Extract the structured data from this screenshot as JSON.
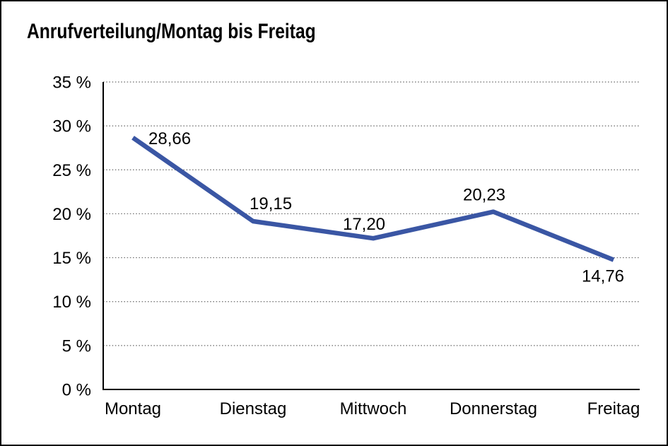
{
  "title": "Anrufverteilung/Montag bis Freitag",
  "chart_data": {
    "type": "line",
    "title": "Anrufverteilung/Montag bis Freitag",
    "categories": [
      "Montag",
      "Dienstag",
      "Mittwoch",
      "Donnerstag",
      "Freitag"
    ],
    "values": [
      28.66,
      19.15,
      17.2,
      20.23,
      14.76
    ],
    "value_labels": [
      "28,66",
      "19,15",
      "17,20",
      "20,23",
      "14,76"
    ],
    "y_tick_labels": [
      "0 %",
      "5 %",
      "10 %",
      "15 %",
      "20 %",
      "25 %",
      "30 %",
      "35 %"
    ],
    "ylim": [
      0,
      35
    ],
    "y_step": 5,
    "xlabel": "",
    "ylabel": "",
    "legend": "none",
    "grid": "horizontal-dotted",
    "line_color": "#3A56A4",
    "grid_color": "#6E6E6E",
    "axis_color": "#000000",
    "text_color": "#000000"
  }
}
